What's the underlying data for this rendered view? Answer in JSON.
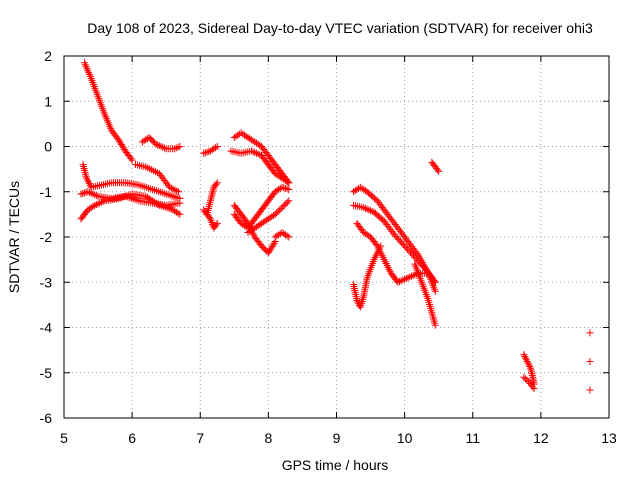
{
  "chart_data": {
    "type": "scatter",
    "title": "Day 108 of 2023, Sidereal Day-to-day VTEC variation (SDTVAR) for receiver ohi3",
    "xlabel": "GPS time / hours",
    "ylabel": "SDTVAR / TECUs",
    "xlim": [
      5,
      13
    ],
    "ylim": [
      -6,
      2
    ],
    "xticks": [
      "5",
      "6",
      "7",
      "8",
      "9",
      "10",
      "11",
      "12",
      "13"
    ],
    "yticks": [
      "2",
      "1",
      "0",
      "-1",
      "-2",
      "-3",
      "-4",
      "-5",
      "-6"
    ],
    "grid": true,
    "marker": "+",
    "color": "#ff0000",
    "tracks": [
      [
        [
          5.3,
          1.85
        ],
        [
          5.4,
          1.5
        ],
        [
          5.5,
          1.1
        ],
        [
          5.6,
          0.7
        ],
        [
          5.7,
          0.35
        ],
        [
          5.8,
          0.15
        ],
        [
          5.9,
          -0.1
        ],
        [
          6.0,
          -0.3
        ]
      ],
      [
        [
          5.28,
          -0.4
        ],
        [
          5.33,
          -0.7
        ],
        [
          5.4,
          -0.9
        ],
        [
          5.55,
          -0.85
        ],
        [
          5.7,
          -0.8
        ],
        [
          5.9,
          -0.8
        ],
        [
          6.1,
          -0.85
        ],
        [
          6.3,
          -0.95
        ],
        [
          6.5,
          -1.05
        ],
        [
          6.7,
          -1.15
        ]
      ],
      [
        [
          5.25,
          -1.05
        ],
        [
          5.35,
          -1.0
        ],
        [
          5.5,
          -1.1
        ],
        [
          5.7,
          -1.15
        ],
        [
          5.9,
          -1.1
        ],
        [
          6.1,
          -1.2
        ],
        [
          6.3,
          -1.25
        ],
        [
          6.5,
          -1.3
        ],
        [
          6.7,
          -1.25
        ]
      ],
      [
        [
          5.25,
          -1.6
        ],
        [
          5.35,
          -1.4
        ],
        [
          5.45,
          -1.3
        ],
        [
          5.6,
          -1.2
        ],
        [
          5.8,
          -1.15
        ],
        [
          6.0,
          -1.05
        ],
        [
          6.2,
          -1.1
        ],
        [
          6.4,
          -1.3
        ],
        [
          6.6,
          -1.4
        ],
        [
          6.7,
          -1.5
        ]
      ],
      [
        [
          6.15,
          0.1
        ],
        [
          6.25,
          0.2
        ],
        [
          6.35,
          0.05
        ],
        [
          6.5,
          -0.05
        ],
        [
          6.62,
          -0.05
        ],
        [
          6.7,
          0.0
        ]
      ],
      [
        [
          6.05,
          -0.4
        ],
        [
          6.2,
          -0.45
        ],
        [
          6.4,
          -0.6
        ],
        [
          6.55,
          -0.9
        ],
        [
          6.68,
          -1.0
        ]
      ],
      [
        [
          7.05,
          -0.15
        ],
        [
          7.15,
          -0.1
        ],
        [
          7.25,
          0.0
        ]
      ],
      [
        [
          7.1,
          -1.5
        ],
        [
          7.15,
          -1.2
        ],
        [
          7.2,
          -0.9
        ],
        [
          7.25,
          -0.8
        ]
      ],
      [
        [
          7.05,
          -1.4
        ],
        [
          7.15,
          -1.6
        ],
        [
          7.2,
          -1.8
        ],
        [
          7.25,
          -1.7
        ]
      ],
      [
        [
          7.5,
          0.2
        ],
        [
          7.6,
          0.3
        ],
        [
          7.7,
          0.2
        ],
        [
          7.8,
          0.1
        ],
        [
          7.9,
          0.0
        ],
        [
          8.0,
          -0.2
        ],
        [
          8.1,
          -0.4
        ],
        [
          8.2,
          -0.6
        ],
        [
          8.3,
          -0.8
        ]
      ],
      [
        [
          7.45,
          -0.1
        ],
        [
          7.6,
          -0.15
        ],
        [
          7.75,
          -0.1
        ],
        [
          7.9,
          -0.2
        ],
        [
          8.0,
          -0.4
        ],
        [
          8.1,
          -0.6
        ],
        [
          8.2,
          -0.7
        ],
        [
          8.3,
          -0.8
        ]
      ],
      [
        [
          7.5,
          -1.3
        ],
        [
          7.6,
          -1.5
        ],
        [
          7.7,
          -1.7
        ],
        [
          7.8,
          -2.0
        ],
        [
          7.9,
          -2.2
        ],
        [
          8.0,
          -2.35
        ],
        [
          8.1,
          -2.1
        ]
      ],
      [
        [
          7.5,
          -1.5
        ],
        [
          7.6,
          -1.7
        ],
        [
          7.7,
          -1.8
        ],
        [
          7.8,
          -1.6
        ],
        [
          7.9,
          -1.4
        ],
        [
          8.0,
          -1.2
        ],
        [
          8.1,
          -1.0
        ],
        [
          8.2,
          -0.9
        ],
        [
          8.3,
          -0.95
        ]
      ],
      [
        [
          7.7,
          -1.9
        ],
        [
          7.9,
          -1.7
        ],
        [
          8.1,
          -1.5
        ],
        [
          8.3,
          -1.2
        ]
      ],
      [
        [
          8.1,
          -2.0
        ],
        [
          8.2,
          -1.9
        ],
        [
          8.3,
          -2.0
        ]
      ],
      [
        [
          9.25,
          -1.0
        ],
        [
          9.35,
          -0.9
        ],
        [
          9.45,
          -1.0
        ],
        [
          9.6,
          -1.2
        ],
        [
          9.75,
          -1.5
        ],
        [
          9.9,
          -1.8
        ],
        [
          10.05,
          -2.1
        ],
        [
          10.2,
          -2.4
        ],
        [
          10.35,
          -2.8
        ],
        [
          10.45,
          -3.2
        ]
      ],
      [
        [
          9.25,
          -1.3
        ],
        [
          9.4,
          -1.35
        ],
        [
          9.55,
          -1.45
        ],
        [
          9.7,
          -1.65
        ],
        [
          9.85,
          -1.95
        ],
        [
          10.0,
          -2.2
        ],
        [
          10.15,
          -2.45
        ],
        [
          10.3,
          -2.7
        ],
        [
          10.45,
          -3.0
        ]
      ],
      [
        [
          9.3,
          -1.7
        ],
        [
          9.4,
          -1.9
        ],
        [
          9.5,
          -2.0
        ],
        [
          9.6,
          -2.2
        ],
        [
          9.7,
          -2.5
        ],
        [
          9.8,
          -2.8
        ],
        [
          9.9,
          -3.0
        ],
        [
          10.05,
          -2.9
        ],
        [
          10.2,
          -2.8
        ],
        [
          10.35,
          -2.8
        ],
        [
          10.45,
          -3.0
        ]
      ],
      [
        [
          9.25,
          -3.05
        ],
        [
          9.3,
          -3.4
        ],
        [
          9.35,
          -3.55
        ],
        [
          9.4,
          -3.3
        ],
        [
          9.45,
          -2.9
        ],
        [
          9.55,
          -2.5
        ],
        [
          9.65,
          -2.2
        ]
      ],
      [
        [
          10.15,
          -2.6
        ],
        [
          10.25,
          -3.0
        ],
        [
          10.35,
          -3.4
        ],
        [
          10.45,
          -3.95
        ]
      ],
      [
        [
          10.4,
          -0.35
        ],
        [
          10.45,
          -0.45
        ],
        [
          10.5,
          -0.55
        ]
      ],
      [
        [
          11.75,
          -4.6
        ],
        [
          11.8,
          -4.75
        ],
        [
          11.85,
          -4.9
        ],
        [
          11.88,
          -5.1
        ],
        [
          11.9,
          -5.25
        ]
      ],
      [
        [
          11.75,
          -5.1
        ],
        [
          11.82,
          -5.2
        ],
        [
          11.9,
          -5.35
        ]
      ],
      [
        [
          12.72,
          -4.12
        ]
      ],
      [
        [
          12.72,
          -4.75
        ]
      ],
      [
        [
          12.72,
          -5.38
        ]
      ]
    ]
  }
}
